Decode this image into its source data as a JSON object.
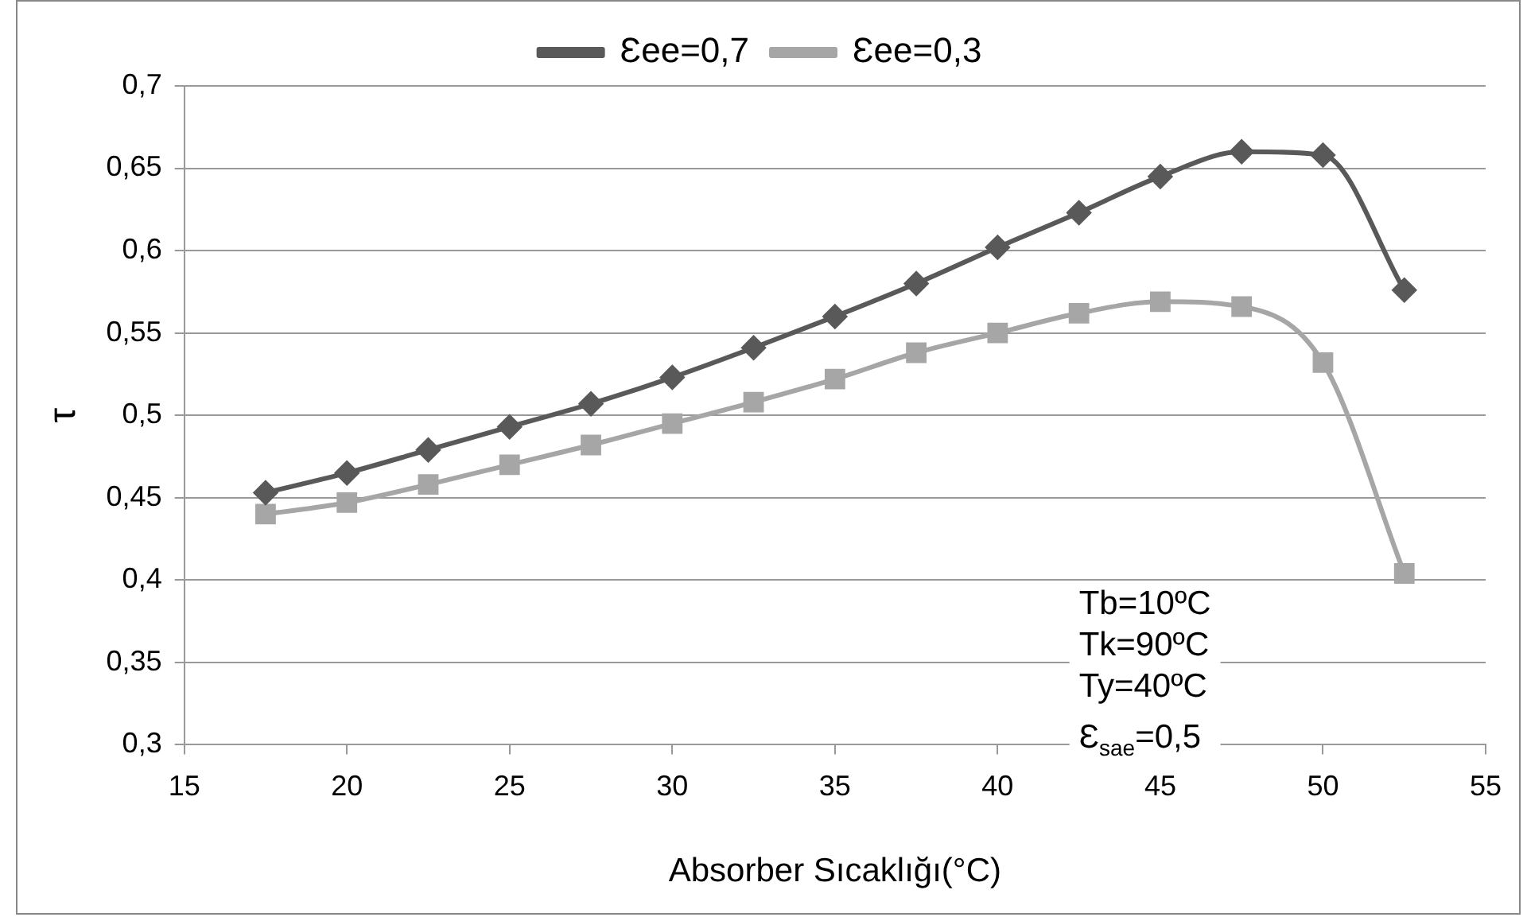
{
  "chart_data": {
    "type": "line",
    "xlabel": "Absorber Sıcaklığı(°C)",
    "ylabel": "τ",
    "series": [
      {
        "name": "Ɛee=0,7",
        "color": "#595959",
        "marker": "diamond",
        "x": [
          17.5,
          20,
          22.5,
          25,
          27.5,
          30,
          32.5,
          35,
          37.5,
          40,
          42.5,
          45,
          47.5,
          50,
          52.5
        ],
        "values": [
          0.453,
          0.465,
          0.479,
          0.493,
          0.507,
          0.523,
          0.541,
          0.56,
          0.58,
          0.602,
          0.623,
          0.645,
          0.66,
          0.658,
          0.576
        ]
      },
      {
        "name": "Ɛee=0,3",
        "color": "#a6a6a6",
        "marker": "square",
        "x": [
          17.5,
          20,
          22.5,
          25,
          27.5,
          30,
          32.5,
          35,
          37.5,
          40,
          42.5,
          45,
          47.5,
          50,
          52.5
        ],
        "values": [
          0.44,
          0.447,
          0.458,
          0.47,
          0.482,
          0.495,
          0.508,
          0.522,
          0.538,
          0.55,
          0.562,
          0.569,
          0.566,
          0.532,
          0.404
        ]
      }
    ],
    "xlim": [
      15,
      55
    ],
    "xticks": [
      15,
      20,
      25,
      30,
      35,
      40,
      45,
      50,
      55
    ],
    "ylim": [
      0.3,
      0.7
    ],
    "yticks": [
      {
        "value": 0.3,
        "label": "0,3"
      },
      {
        "value": 0.35,
        "label": "0,35"
      },
      {
        "value": 0.4,
        "label": "0,4"
      },
      {
        "value": 0.45,
        "label": "0,45"
      },
      {
        "value": 0.5,
        "label": "0,5"
      },
      {
        "value": 0.55,
        "label": "0,55"
      },
      {
        "value": 0.6,
        "label": "0,6"
      },
      {
        "value": 0.65,
        "label": "0,65"
      },
      {
        "value": 0.7,
        "label": "0,7"
      }
    ],
    "grid": "y",
    "legend": "top",
    "line_style": "solid",
    "annotations": [
      "Tb=10ºC",
      "Tk=90ºC",
      "Ty=40ºC",
      "Ɛ$_{sae}$=0,5"
    ]
  }
}
